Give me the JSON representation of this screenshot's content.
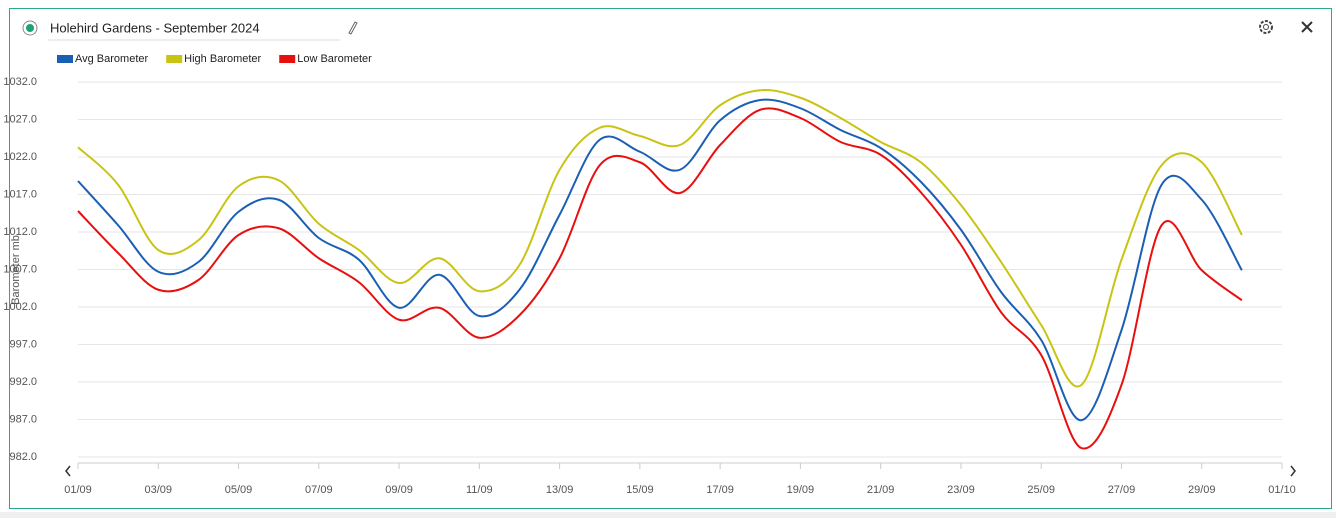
{
  "chart_data": {
    "type": "line",
    "title": "Holehird Gardens - September 2024",
    "y_label": "Barometer mb",
    "categories": [
      "01/09",
      null,
      "03/09",
      null,
      "05/09",
      null,
      "07/09",
      null,
      "09/09",
      null,
      "11/09",
      null,
      "13/09",
      null,
      "15/09",
      null,
      "17/09",
      null,
      "19/09",
      null,
      "21/09",
      null,
      "23/09",
      null,
      "25/09",
      null,
      "27/09",
      null,
      "29/09",
      null,
      "01/10"
    ],
    "series": [
      {
        "name": "Avg Barometer",
        "color": "#1a5fb4",
        "values": [
          1018.8,
          1012.9,
          1006.7,
          1008,
          1014.7,
          1016.3,
          1011.2,
          1008.3,
          1001.9,
          1006.3,
          1000.8,
          1004.3,
          1014.3,
          1024.3,
          1022.7,
          1020.3,
          1026.9,
          1029.6,
          1028.5,
          1025.6,
          1023.2,
          1018.7,
          1012.3,
          1004.0,
          997.6,
          986.9,
          998.9,
          1018.3,
          1016.3,
          1006.9,
          null
        ]
      },
      {
        "name": "High Barometer",
        "color": "#c8c414",
        "values": [
          1023.3,
          1018.3,
          1009.6,
          1010.9,
          1018.1,
          1018.9,
          1013.1,
          1009.6,
          1005.2,
          1008.5,
          1004.1,
          1007.6,
          1020.3,
          1025.9,
          1024.8,
          1023.6,
          1028.9,
          1030.9,
          1029.9,
          1027.2,
          1024.0,
          1021.3,
          1015.6,
          1008.0,
          999.6,
          991.6,
          1008.3,
          1020.9,
          1021.3,
          1011.6,
          null
        ]
      },
      {
        "name": "Low Barometer",
        "color": "#e8100e",
        "values": [
          1014.8,
          1009.2,
          1004.3,
          1005.6,
          1011.6,
          1012.5,
          1008.5,
          1005.3,
          1000.3,
          1001.9,
          997.9,
          1000.9,
          1008.5,
          1020.9,
          1021.3,
          1017.2,
          1023.6,
          1028.3,
          1027.2,
          1024.0,
          1022.3,
          1017.3,
          1010.3,
          1001.3,
          995.6,
          983.2,
          991.6,
          1012.9,
          1006.9,
          1002.9,
          null
        ]
      }
    ],
    "ylim": [
      982,
      1032
    ],
    "yticks": [
      {
        "value": 982,
        "label": "982.0"
      },
      {
        "value": 987,
        "label": "987.0"
      },
      {
        "value": 992,
        "label": "992.0"
      },
      {
        "value": 997,
        "label": "997.0"
      },
      {
        "value": 1002,
        "label": "1002.0"
      },
      {
        "value": 1007,
        "label": "1007.0"
      },
      {
        "value": 1012,
        "label": "1012.0"
      },
      {
        "value": 1017,
        "label": "1017.0"
      },
      {
        "value": 1022,
        "label": "1022.0"
      },
      {
        "value": 1027,
        "label": "1027.0"
      },
      {
        "value": 1032,
        "label": "1032.0"
      }
    ],
    "grid": true,
    "legend": "top-left"
  }
}
